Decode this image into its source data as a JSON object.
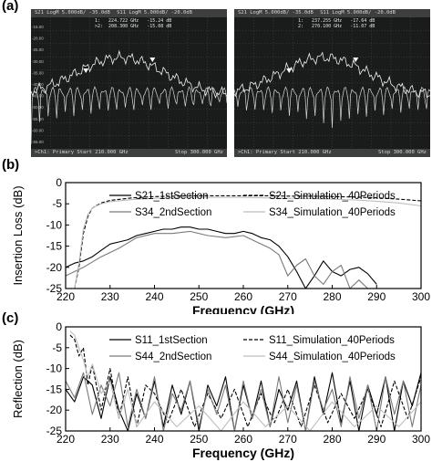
{
  "panel_labels": [
    "(a)",
    "(b)",
    "(c)"
  ],
  "analyzer": {
    "screens": [
      {
        "trace_labels": [
          "S21 LogM 5.000dB/ -35.0dB",
          "S11 LogM 5.000dB/ -20.0dB"
        ],
        "markers": [
          "1:   224.722 GHz   -15.24 dB",
          ">2:  208.300 GHz   -15.08 dB"
        ],
        "ytick_labels": [
          "-15.00",
          "-20.00",
          "-25.00",
          "-30.00",
          "-35.00",
          "-40.00",
          "-45.00",
          "-50.00",
          "-55.00",
          "-60.00",
          "-65.00"
        ],
        "footer_left": ">Ch1: Primary  Start 210.000 GHz",
        "footer_right": "Stop 300.000 GHz"
      },
      {
        "trace_labels": [
          "S21 LogM 5.000dB/ -35.0dB",
          "S11 LogM 5.000dB/ -20.0dB"
        ],
        "markers": [
          "1:   237.255 GHz   -17.64 dB",
          "2:   270.100 GHz   -11.07 dB"
        ],
        "ytick_labels": [],
        "footer_left": ">Ch1: Primary  Start 210.000 GHz",
        "footer_right": "Stop 300.000 GHz"
      }
    ]
  },
  "chart_data": [
    {
      "type": "line",
      "ylabel": "Insertion Loss (dB)",
      "xlabel": "Frequency (GHz)",
      "xlim": [
        220,
        300
      ],
      "ylim": [
        -25,
        0
      ],
      "xticks": [
        220,
        230,
        240,
        250,
        260,
        270,
        280,
        290,
        300
      ],
      "yticks": [
        -25,
        -20,
        -15,
        -10,
        -5,
        0
      ],
      "legend_position": "top-right",
      "series": [
        {
          "name": "S21_1stSection",
          "style": "solid",
          "color": "#000000",
          "x": [
            220,
            222,
            224,
            226,
            228,
            230,
            232,
            234,
            236,
            238,
            240,
            242,
            244,
            246,
            248,
            250,
            252,
            254,
            256,
            258,
            260,
            262,
            264,
            266,
            268,
            270,
            272,
            274,
            276,
            278,
            280,
            282,
            284,
            286,
            288,
            290
          ],
          "y": [
            -20,
            -19,
            -18.5,
            -17.5,
            -16,
            -14.5,
            -14,
            -13.5,
            -12.5,
            -12,
            -11.5,
            -11,
            -11,
            -10.5,
            -10.5,
            -11,
            -11,
            -11.5,
            -12,
            -12,
            -11.5,
            -12,
            -13,
            -13.5,
            -15,
            -17.5,
            -21,
            -25,
            -22,
            -18.5,
            -21,
            -22,
            -20.5,
            -20,
            -21.5,
            -24
          ]
        },
        {
          "name": "S21_Simulation_40Periods",
          "style": "dashed",
          "color": "#000000",
          "x": [
            222,
            223,
            224,
            225,
            226,
            228,
            230,
            235,
            240,
            245,
            250,
            255,
            260,
            265,
            270,
            275,
            280,
            285,
            290,
            295,
            300
          ],
          "y": [
            -25,
            -20,
            -12,
            -8,
            -6,
            -4.8,
            -4.2,
            -3.6,
            -3.3,
            -3.2,
            -3.1,
            -3.1,
            -3.1,
            -3.1,
            -3.2,
            -3.2,
            -3.3,
            -3.4,
            -3.6,
            -3.9,
            -4.3
          ]
        },
        {
          "name": "S34_2ndSection",
          "style": "solid",
          "color": "#7a7a7a",
          "x": [
            220,
            224,
            228,
            232,
            236,
            240,
            244,
            248,
            252,
            256,
            260,
            263,
            266,
            268,
            270,
            272,
            274,
            276,
            278,
            280,
            282,
            284,
            286,
            288
          ],
          "y": [
            -22,
            -20,
            -17.5,
            -15.5,
            -13,
            -12,
            -12,
            -11.5,
            -12.5,
            -13,
            -12.5,
            -14,
            -15.5,
            -17,
            -22,
            -19.5,
            -18,
            -22,
            -24,
            -21,
            -19.5,
            -25,
            -23,
            -25
          ]
        },
        {
          "name": "S34_Simulation_40Periods",
          "style": "solid",
          "color": "#bdbdbd",
          "x": [
            222,
            223,
            224,
            225,
            226,
            228,
            230,
            235,
            240,
            245,
            250,
            255,
            260,
            265,
            270,
            275,
            280,
            285,
            290,
            295,
            300
          ],
          "y": [
            -25,
            -19,
            -11,
            -7.5,
            -6,
            -5,
            -4.5,
            -4,
            -3.7,
            -3.6,
            -3.5,
            -3.5,
            -3.5,
            -3.6,
            -3.7,
            -3.8,
            -3.9,
            -4.1,
            -4.4,
            -4.8,
            -5.5
          ]
        }
      ]
    },
    {
      "type": "line",
      "ylabel": "Reflection (dB)",
      "xlabel": "Frequency (GHz)",
      "xlim": [
        220,
        300
      ],
      "ylim": [
        -25,
        0
      ],
      "xticks": [
        220,
        230,
        240,
        250,
        260,
        270,
        280,
        290,
        300
      ],
      "yticks": [
        -25,
        -20,
        -15,
        -10,
        -5,
        0
      ],
      "legend_position": "top-right",
      "series": [
        {
          "name": "S11_1stSection",
          "style": "solid",
          "color": "#000000",
          "x": [
            220,
            222,
            224,
            226,
            228,
            230,
            232,
            234,
            236,
            238,
            240,
            242,
            244,
            246,
            248,
            250,
            252,
            254,
            256,
            258,
            260,
            262,
            264,
            266,
            268,
            270,
            272,
            274,
            276,
            278,
            280,
            282,
            284,
            286,
            288,
            290,
            292,
            294,
            296,
            298,
            300
          ],
          "y": [
            -15,
            -18,
            -12,
            -14,
            -22,
            -12,
            -20,
            -25,
            -16,
            -22,
            -13,
            -24,
            -14,
            -21,
            -13,
            -25,
            -14,
            -19,
            -12,
            -25,
            -14,
            -22,
            -13,
            -24,
            -15,
            -20,
            -13,
            -25,
            -12,
            -21,
            -11,
            -23,
            -13,
            -25,
            -14,
            -21,
            -12,
            -25,
            -13,
            -19,
            -11
          ]
        },
        {
          "name": "S11_Simulation_40Periods",
          "style": "dashed",
          "color": "#000000",
          "x": [
            221,
            222,
            223,
            224,
            225,
            226,
            228,
            230,
            232,
            234,
            236,
            238,
            240,
            243,
            246,
            249,
            252,
            255,
            258,
            261,
            264,
            267,
            270,
            273,
            276,
            279,
            282,
            285,
            288,
            291,
            294,
            297,
            300
          ],
          "y": [
            -2,
            -3,
            -7,
            -5,
            -14,
            -9,
            -20,
            -10,
            -22,
            -12,
            -24,
            -14,
            -16,
            -23,
            -15,
            -24,
            -16,
            -22,
            -15,
            -24,
            -16,
            -23,
            -15,
            -24,
            -14,
            -23,
            -16,
            -22,
            -15,
            -24,
            -13,
            -22,
            -12
          ]
        },
        {
          "name": "S44_2ndSection",
          "style": "solid",
          "color": "#7a7a7a",
          "x": [
            220,
            222,
            224,
            226,
            228,
            230,
            232,
            234,
            236,
            238,
            240,
            242,
            244,
            246,
            248,
            250,
            252,
            254,
            256,
            258,
            260,
            262,
            264,
            266,
            268,
            270,
            272,
            274,
            276,
            278,
            280,
            282,
            284,
            286,
            288,
            290,
            292,
            294,
            296,
            298,
            300
          ],
          "y": [
            -13,
            -17,
            -11,
            -21,
            -14,
            -19,
            -11,
            -24,
            -15,
            -22,
            -12,
            -25,
            -16,
            -20,
            -13,
            -24,
            -15,
            -21,
            -14,
            -25,
            -13,
            -22,
            -15,
            -24,
            -12,
            -23,
            -14,
            -25,
            -13,
            -20,
            -15,
            -24,
            -12,
            -22,
            -14,
            -25,
            -12,
            -21,
            -13,
            -24,
            -14
          ]
        },
        {
          "name": "S44_Simulation_40Periods",
          "style": "solid",
          "color": "#bdbdbd",
          "x": [
            221,
            222,
            223,
            224,
            225,
            226,
            228,
            230,
            232,
            234,
            236,
            240,
            245,
            250,
            255,
            260,
            265,
            270,
            275,
            280,
            285,
            290,
            295,
            300
          ],
          "y": [
            -1,
            -2,
            -5,
            -8,
            -12,
            -9,
            -16,
            -13,
            -22,
            -15,
            -24,
            -18,
            -24,
            -19,
            -25,
            -18,
            -24,
            -19,
            -25,
            -18,
            -24,
            -19,
            -24,
            -18
          ]
        }
      ]
    }
  ]
}
